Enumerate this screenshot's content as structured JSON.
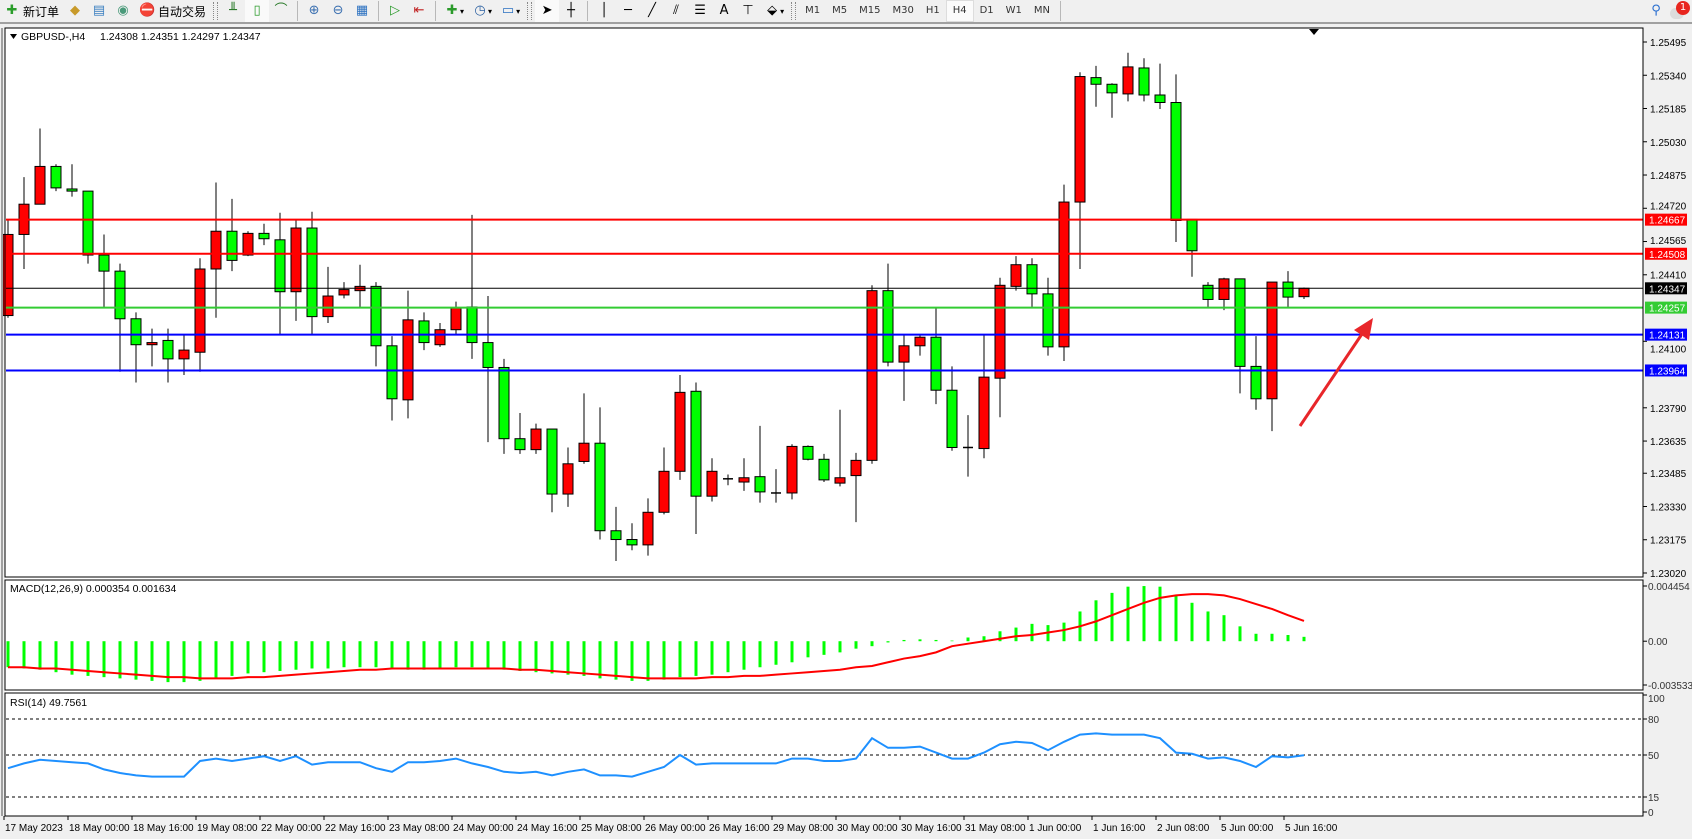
{
  "toolbar": {
    "new_order_label": "新订单",
    "auto_trading_label": "自动交易",
    "icons": [
      "new-order-icon",
      "market-watch-icon",
      "navigator-icon",
      "signals-icon",
      "auto-trading-icon",
      "bar-chart-icon",
      "candlestick-icon",
      "line-chart-icon",
      "zoom-in-icon",
      "zoom-out-icon",
      "tile-windows-icon",
      "autoscroll-icon",
      "chart-shift-icon",
      "indicators-icon",
      "periods-icon",
      "templates-icon",
      "cursor-icon",
      "crosshair-icon",
      "vertical-line-icon",
      "horizontal-line-icon",
      "trendline-icon",
      "equidistant-channel-icon",
      "fibonacci-icon",
      "text-icon",
      "text-label-icon",
      "arrows-icon",
      "search-icon",
      "notifications-icon"
    ],
    "text_tool": "A",
    "timeframes": [
      "M1",
      "M5",
      "M15",
      "M30",
      "H1",
      "H4",
      "D1",
      "W1",
      "MN"
    ],
    "active_timeframe": "H4",
    "notification_count": "1"
  },
  "chart": {
    "symbol_label": "GBPUSD-,H4",
    "ohlc_label": "1.24308 1.24351 1.24297 1.24347",
    "bull_color": "#ff0000",
    "bear_color": "#00ff00",
    "price_ticks": [
      "1.25495",
      "1.25340",
      "1.25185",
      "1.25030",
      "1.24875",
      "1.24720",
      "1.24565",
      "1.24410",
      "1.24100",
      "1.23790",
      "1.23635",
      "1.23485",
      "1.23330",
      "1.23175",
      "1.23020"
    ],
    "price_range": [
      1.2302,
      1.25495
    ],
    "levels": [
      {
        "price": "1.24667",
        "color": "#ff0000"
      },
      {
        "price": "1.24508",
        "color": "#ff0000"
      },
      {
        "price": "1.24347",
        "color": "#000000"
      },
      {
        "price": "1.24257",
        "color": "#33cc33"
      },
      {
        "price": "1.24131",
        "color": "#0000ff"
      },
      {
        "price": "1.23964",
        "color": "#0000ff"
      }
    ],
    "annotation": {
      "type": "arrow",
      "color": "#e8262a"
    },
    "candles": [
      [
        1.2422,
        1.24663,
        1.2421,
        1.24598
      ],
      [
        1.24598,
        1.24865,
        1.24437,
        1.24739
      ],
      [
        1.24739,
        1.25092,
        1.24739,
        1.24915
      ],
      [
        1.24915,
        1.24925,
        1.248,
        1.24815
      ],
      [
        1.2481,
        1.24925,
        1.24774,
        1.248
      ],
      [
        1.248,
        1.248,
        1.24462,
        1.24502
      ],
      [
        1.24502,
        1.24598,
        1.2426,
        1.24427
      ],
      [
        1.24427,
        1.24462,
        1.23958,
        1.24205
      ],
      [
        1.24205,
        1.24235,
        1.23908,
        1.24084
      ],
      [
        1.24084,
        1.24159,
        1.23983,
        1.24094
      ],
      [
        1.24104,
        1.24159,
        1.23908,
        1.24018
      ],
      [
        1.24018,
        1.24134,
        1.23943,
        1.24059
      ],
      [
        1.24049,
        1.24487,
        1.23958,
        1.24437
      ],
      [
        1.24437,
        1.2484,
        1.2421,
        1.24613
      ],
      [
        1.24613,
        1.24764,
        1.24427,
        1.24477
      ],
      [
        1.24502,
        1.24613,
        1.24497,
        1.24603
      ],
      [
        1.24603,
        1.24648,
        1.24548,
        1.24578
      ],
      [
        1.24573,
        1.24699,
        1.24134,
        1.24331
      ],
      [
        1.24331,
        1.24663,
        1.24195,
        1.24628
      ],
      [
        1.24628,
        1.24704,
        1.24134,
        1.24215
      ],
      [
        1.24215,
        1.24447,
        1.24185,
        1.24311
      ],
      [
        1.24316,
        1.24376,
        1.243,
        1.24341
      ],
      [
        1.24336,
        1.24457,
        1.2426,
        1.24356
      ],
      [
        1.24356,
        1.24376,
        1.23983,
        1.24079
      ],
      [
        1.24079,
        1.24124,
        1.23731,
        1.23832
      ],
      [
        1.23827,
        1.24336,
        1.23741,
        1.242
      ],
      [
        1.24195,
        1.24235,
        1.24059,
        1.24094
      ],
      [
        1.24084,
        1.24185,
        1.24074,
        1.24154
      ],
      [
        1.24154,
        1.24285,
        1.24134,
        1.24255
      ],
      [
        1.2426,
        1.24689,
        1.24018,
        1.24094
      ],
      [
        1.24094,
        1.24311,
        1.2363,
        1.23978
      ],
      [
        1.23978,
        1.24018,
        1.23575,
        1.23646
      ],
      [
        1.23646,
        1.23766,
        1.23575,
        1.23595
      ],
      [
        1.23595,
        1.23716,
        1.23575,
        1.23691
      ],
      [
        1.23691,
        1.23691,
        1.23303,
        1.23388
      ],
      [
        1.23388,
        1.23605,
        1.23328,
        1.23529
      ],
      [
        1.2354,
        1.23857,
        1.23529,
        1.23625
      ],
      [
        1.23625,
        1.23792,
        1.23176,
        1.23217
      ],
      [
        1.23217,
        1.23328,
        1.23076,
        1.23176
      ],
      [
        1.23176,
        1.23252,
        1.23126,
        1.23151
      ],
      [
        1.23151,
        1.23368,
        1.23101,
        1.23303
      ],
      [
        1.23303,
        1.23605,
        1.23293,
        1.23494
      ],
      [
        1.23494,
        1.23943,
        1.23454,
        1.23862
      ],
      [
        1.23867,
        1.23908,
        1.23202,
        1.23378
      ],
      [
        1.23378,
        1.23555,
        1.23353,
        1.23494
      ],
      [
        1.23459,
        1.23479,
        1.23429,
        1.23459
      ],
      [
        1.23444,
        1.23555,
        1.23403,
        1.23464
      ],
      [
        1.23469,
        1.23706,
        1.23348,
        1.23398
      ],
      [
        1.23393,
        1.23504,
        1.23348,
        1.23393
      ],
      [
        1.23393,
        1.2362,
        1.23363,
        1.2361
      ],
      [
        1.2361,
        1.23615,
        1.23545,
        1.2355
      ],
      [
        1.2355,
        1.23575,
        1.23444,
        1.23454
      ],
      [
        1.23439,
        1.23781,
        1.23424,
        1.23464
      ],
      [
        1.23474,
        1.2358,
        1.23257,
        1.23545
      ],
      [
        1.23545,
        1.24361,
        1.23529,
        1.24336
      ],
      [
        1.24336,
        1.24462,
        1.23983,
        1.24003
      ],
      [
        1.24003,
        1.24134,
        1.23822,
        1.24079
      ],
      [
        1.24079,
        1.24134,
        1.24033,
        1.24119
      ],
      [
        1.24119,
        1.2426,
        1.23807,
        1.23872
      ],
      [
        1.23872,
        1.23983,
        1.2359,
        1.23605
      ],
      [
        1.23605,
        1.23756,
        1.23469,
        1.23605
      ],
      [
        1.236,
        1.24134,
        1.23555,
        1.23933
      ],
      [
        1.23928,
        1.24396,
        1.23746,
        1.24361
      ],
      [
        1.24356,
        1.24497,
        1.24336,
        1.24457
      ],
      [
        1.24457,
        1.24487,
        1.2426,
        1.24321
      ],
      [
        1.24321,
        1.24396,
        1.24033,
        1.24074
      ],
      [
        1.24074,
        1.2483,
        1.24008,
        1.24749
      ],
      [
        1.24749,
        1.25354,
        1.24437,
        1.25334
      ],
      [
        1.25329,
        1.25384,
        1.25193,
        1.25298
      ],
      [
        1.25298,
        1.25303,
        1.25142,
        1.25258
      ],
      [
        1.25253,
        1.25445,
        1.25218,
        1.25379
      ],
      [
        1.25374,
        1.25419,
        1.25218,
        1.25248
      ],
      [
        1.25248,
        1.25394,
        1.25183,
        1.25213
      ],
      [
        1.25213,
        1.25344,
        1.24563,
        1.24663
      ],
      [
        1.24668,
        1.24668,
        1.24401,
        1.24522
      ],
      [
        1.24361,
        1.24376,
        1.2426,
        1.24295
      ],
      [
        1.24295,
        1.24396,
        1.24245,
        1.24391
      ],
      [
        1.24391,
        1.24391,
        1.23857,
        1.23983
      ],
      [
        1.23983,
        1.24124,
        1.23781,
        1.23832
      ],
      [
        1.23832,
        1.24376,
        1.23681,
        1.24376
      ],
      [
        1.24376,
        1.24427,
        1.2426,
        1.24306
      ],
      [
        1.24308,
        1.24351,
        1.24297,
        1.24347
      ]
    ],
    "time_labels": [
      "17 May 2023",
      "18 May 00:00",
      "18 May 16:00",
      "19 May 08:00",
      "22 May 00:00",
      "22 May 16:00",
      "23 May 08:00",
      "24 May 00:00",
      "24 May 16:00",
      "25 May 08:00",
      "26 May 00:00",
      "26 May 16:00",
      "29 May 08:00",
      "30 May 00:00",
      "30 May 16:00",
      "31 May 08:00",
      "1 Jun 00:00",
      "1 Jun 16:00",
      "2 Jun 08:00",
      "5 Jun 00:00",
      "5 Jun 16:00"
    ]
  },
  "macd": {
    "label": "MACD(12,26,9) 0.000354 0.001634",
    "ticks": [
      "0.004454",
      "0.00",
      "-0.003533"
    ],
    "range": [
      -0.003533,
      0.004454
    ],
    "histogram_color": "#00ff00",
    "signal_color": "#ff0000",
    "histogram": [
      -0.0021,
      -0.0022,
      -0.0023,
      -0.0025,
      -0.0027,
      -0.0028,
      -0.0029,
      -0.003,
      -0.0031,
      -0.0032,
      -0.0033,
      -0.0033,
      -0.0032,
      -0.003,
      -0.0028,
      -0.0026,
      -0.0025,
      -0.0024,
      -0.0023,
      -0.0022,
      -0.0022,
      -0.0021,
      -0.0021,
      -0.0021,
      -0.0022,
      -0.0023,
      -0.0023,
      -0.0022,
      -0.0021,
      -0.0021,
      -0.0022,
      -0.0023,
      -0.0024,
      -0.0025,
      -0.0026,
      -0.0027,
      -0.0028,
      -0.003,
      -0.0031,
      -0.0032,
      -0.0032,
      -0.0031,
      -0.0029,
      -0.0028,
      -0.0027,
      -0.0025,
      -0.0023,
      -0.0021,
      -0.0019,
      -0.0017,
      -0.0013,
      -0.0011,
      -0.0009,
      -0.0006,
      -0.0004,
      -0.0001,
      0.0001,
      0.00015,
      0.0001,
      5e-05,
      0.0003,
      0.0004,
      0.0008,
      0.0011,
      0.0014,
      0.0013,
      0.0015,
      0.0024,
      0.0033,
      0.0039,
      0.0044,
      0.00445,
      0.0044,
      0.0037,
      0.0031,
      0.0024,
      0.0021,
      0.0012,
      0.0006,
      0.0006,
      0.0005,
      0.000354
    ],
    "signal": [
      -0.0021,
      -0.0021,
      -0.0022,
      -0.0022,
      -0.0023,
      -0.0024,
      -0.0025,
      -0.0026,
      -0.0027,
      -0.0028,
      -0.0029,
      -0.0029,
      -0.003,
      -0.003,
      -0.003,
      -0.0029,
      -0.0029,
      -0.0028,
      -0.0027,
      -0.0026,
      -0.0025,
      -0.0024,
      -0.0023,
      -0.0023,
      -0.0022,
      -0.0022,
      -0.0022,
      -0.0022,
      -0.0022,
      -0.0022,
      -0.0022,
      -0.0022,
      -0.0023,
      -0.0023,
      -0.0024,
      -0.0025,
      -0.0026,
      -0.0027,
      -0.0028,
      -0.0029,
      -0.003,
      -0.003,
      -0.003,
      -0.003,
      -0.0029,
      -0.0029,
      -0.0028,
      -0.0028,
      -0.0027,
      -0.0026,
      -0.0025,
      -0.0024,
      -0.0023,
      -0.0021,
      -0.002,
      -0.0017,
      -0.0014,
      -0.0012,
      -0.0009,
      -0.0004,
      -0.0002,
      0.0,
      0.0002,
      0.0004,
      0.0005,
      0.0007,
      0.0009,
      0.0012,
      0.0016,
      0.0021,
      0.0026,
      0.0031,
      0.0035,
      0.0037,
      0.0038,
      0.0038,
      0.0037,
      0.0034,
      0.003,
      0.0026,
      0.0021,
      0.001634
    ]
  },
  "rsi": {
    "label": "RSI(14) 49.7561",
    "ticks": [
      "100",
      "80",
      "50",
      "15",
      "0"
    ],
    "levels": [
      80,
      50,
      15
    ],
    "color": "#1e90ff",
    "values": [
      39,
      43,
      46,
      45,
      44,
      43,
      38,
      35,
      33,
      32,
      32,
      32,
      45,
      47,
      45,
      47,
      49,
      45,
      49,
      42,
      44,
      44,
      44,
      39,
      36,
      44,
      44,
      45,
      47,
      43,
      40,
      36,
      35,
      36,
      33,
      36,
      38,
      33,
      33,
      32,
      36,
      40,
      50,
      42,
      43,
      43,
      43,
      43,
      43,
      47,
      47,
      45,
      45,
      47,
      64,
      56,
      56,
      57,
      52,
      47,
      47,
      52,
      59,
      61,
      60,
      54,
      61,
      67,
      68,
      67,
      67,
      67,
      64,
      52,
      51,
      47,
      48,
      45,
      40,
      49,
      48,
      49.7561
    ]
  }
}
